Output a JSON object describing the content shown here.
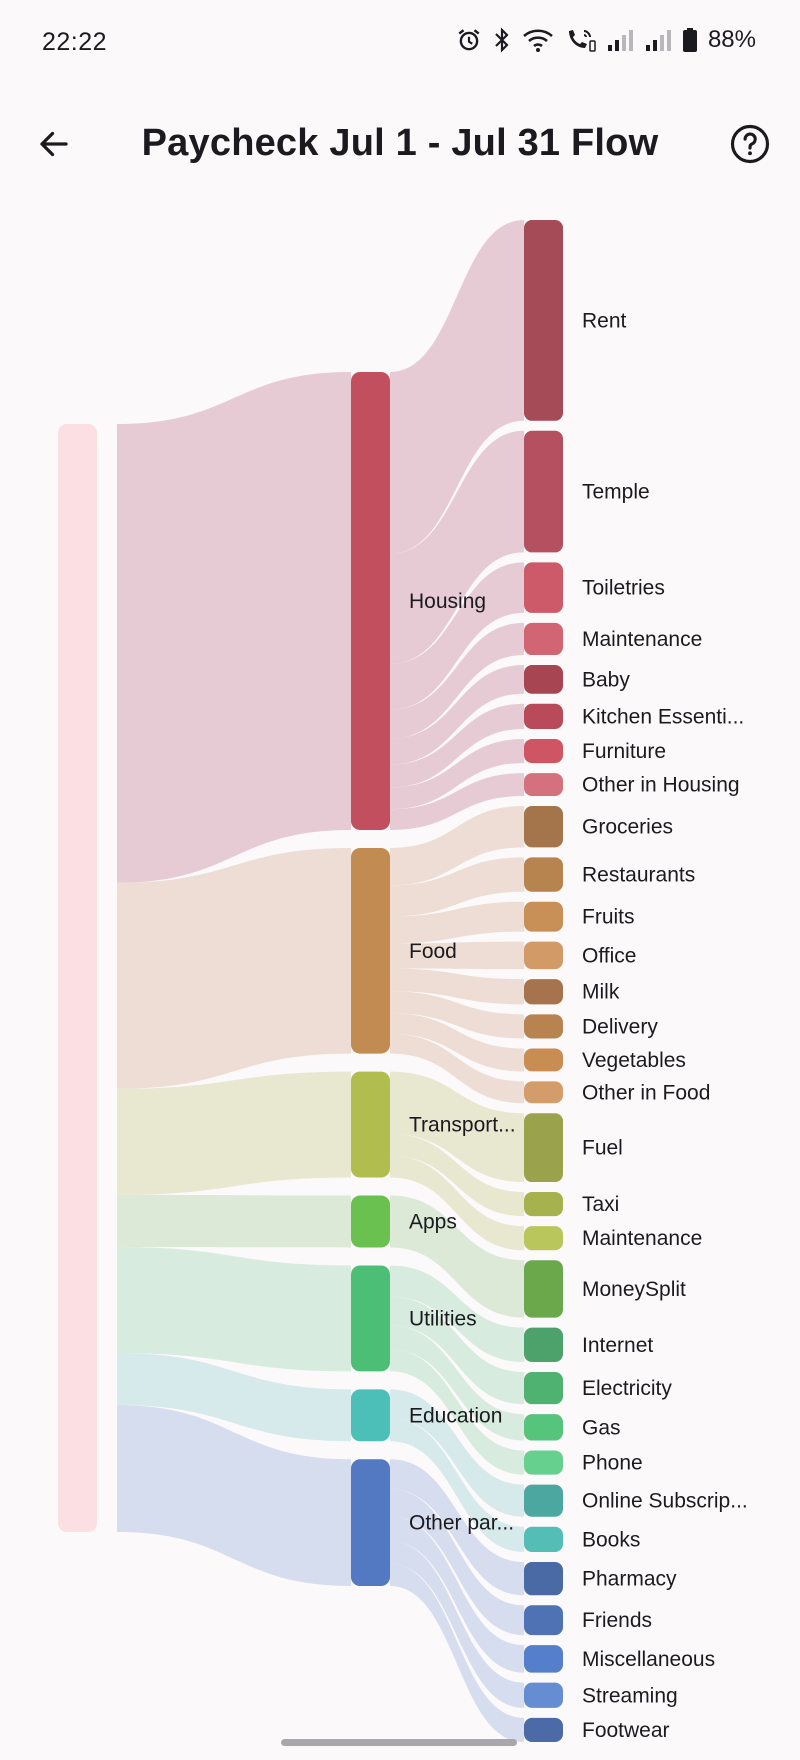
{
  "status_bar": {
    "time": "22:22",
    "battery": "88%",
    "icons": [
      "alarm-icon",
      "bluetooth-icon",
      "wifi-icon",
      "wifi-calling-icon",
      "signal-icon",
      "signal-icon",
      "battery-icon"
    ]
  },
  "app_bar": {
    "title": "Paycheck Jul 1 - Jul 31 Flow",
    "back_icon": "arrow-back-icon",
    "help_icon": "help-circle-icon"
  },
  "chart_data": {
    "type": "sankey",
    "source": {
      "label": "",
      "color": "#fbdfe2"
    },
    "categories": [
      {
        "name": "Housing",
        "label": "Housing",
        "color": "#c24f5e",
        "link_color": "#e2c3cd",
        "children": [
          {
            "label": "Rent",
            "weight": 17.5,
            "color": "#a54a57"
          },
          {
            "label": "Temple",
            "weight": 10.6,
            "color": "#b4505f"
          },
          {
            "label": "Toiletries",
            "weight": 4.4,
            "color": "#cc5a68"
          },
          {
            "label": "Maintenance",
            "weight": 2.8,
            "color": "#d26573"
          },
          {
            "label": "Baby",
            "weight": 2.5,
            "color": "#a84553"
          },
          {
            "label": "Kitchen Essenti...",
            "weight": 2.2,
            "color": "#b94a59"
          },
          {
            "label": "Furniture",
            "weight": 2.1,
            "color": "#cf5564"
          },
          {
            "label": "Other in Housing",
            "weight": 2.0,
            "color": "#d5707d"
          }
        ]
      },
      {
        "name": "Food",
        "label": "Food",
        "color": "#c28b52",
        "link_color": "#ead8cd",
        "children": [
          {
            "label": "Groceries",
            "weight": 3.6,
            "color": "#a4754b"
          },
          {
            "label": "Restaurants",
            "weight": 3.0,
            "color": "#b7844f"
          },
          {
            "label": "Fruits",
            "weight": 2.6,
            "color": "#c88f56"
          },
          {
            "label": "Office",
            "weight": 2.4,
            "color": "#d19a67"
          },
          {
            "label": "Milk",
            "weight": 2.2,
            "color": "#a6734c"
          },
          {
            "label": "Delivery",
            "weight": 2.1,
            "color": "#b9834f"
          },
          {
            "label": "Vegetables",
            "weight": 2.0,
            "color": "#c98c52"
          },
          {
            "label": "Other in Food",
            "weight": 1.9,
            "color": "#d39c6a"
          }
        ]
      },
      {
        "name": "Transport",
        "label": "Transport...",
        "color": "#b1bd4e",
        "link_color": "#e4e4c8",
        "children": [
          {
            "label": "Fuel",
            "weight": 6.0,
            "color": "#9aa24b"
          },
          {
            "label": "Taxi",
            "weight": 2.1,
            "color": "#a6b24e"
          },
          {
            "label": "Maintenance",
            "weight": 2.1,
            "color": "#b9c65c"
          }
        ]
      },
      {
        "name": "Apps",
        "label": "Apps",
        "color": "#6bc14f",
        "link_color": "#d5e6cf",
        "children": [
          {
            "label": "MoneySplit",
            "weight": 5.0,
            "color": "#6ba84b"
          }
        ]
      },
      {
        "name": "Utilities",
        "label": "Utilities",
        "color": "#4dbe76",
        "link_color": "#d0ead9",
        "children": [
          {
            "label": "Internet",
            "weight": 3.0,
            "color": "#4ca26a"
          },
          {
            "label": "Electricity",
            "weight": 2.8,
            "color": "#4fb270"
          },
          {
            "label": "Gas",
            "weight": 2.3,
            "color": "#57c47c"
          },
          {
            "label": "Phone",
            "weight": 2.1,
            "color": "#66d08f"
          }
        ]
      },
      {
        "name": "Education",
        "label": "Education",
        "color": "#4cc0b8",
        "link_color": "#cfe6e8",
        "children": [
          {
            "label": "Online Subscrip...",
            "weight": 2.8,
            "color": "#4ba7a0"
          },
          {
            "label": "Books",
            "weight": 2.2,
            "color": "#54bdb5"
          }
        ]
      },
      {
        "name": "Other",
        "label": "Other par...",
        "color": "#5379c2",
        "link_color": "#cfd8ec",
        "children": [
          {
            "label": "Pharmacy",
            "weight": 2.9,
            "color": "#4a6aa5"
          },
          {
            "label": "Friends",
            "weight": 2.6,
            "color": "#4e72b4"
          },
          {
            "label": "Miscellaneous",
            "weight": 2.4,
            "color": "#557ecb"
          },
          {
            "label": "Streaming",
            "weight": 2.2,
            "color": "#668dd2"
          },
          {
            "label": "Footwear",
            "weight": 2.1,
            "color": "#4b6aa6"
          }
        ]
      }
    ]
  }
}
